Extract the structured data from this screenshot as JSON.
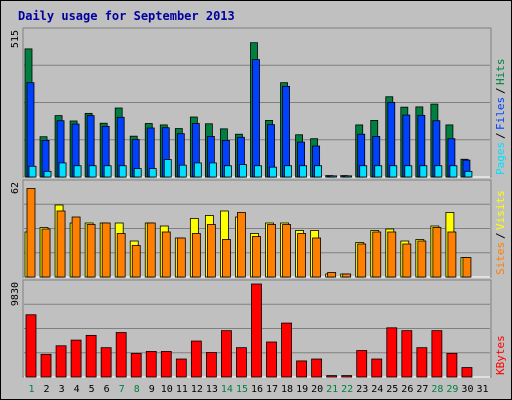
{
  "chart_data": {
    "type": "bar",
    "title": "Daily usage for September 2013",
    "categories": [
      "1",
      "2",
      "3",
      "4",
      "5",
      "6",
      "7",
      "8",
      "9",
      "10",
      "11",
      "12",
      "13",
      "14",
      "15",
      "16",
      "17",
      "18",
      "19",
      "20",
      "21",
      "22",
      "23",
      "24",
      "25",
      "26",
      "27",
      "28",
      "29",
      "30",
      "31"
    ],
    "weekend_days": [
      "1",
      "7",
      "8",
      "14",
      "15",
      "21",
      "22",
      "28",
      "29"
    ],
    "panels": [
      {
        "id": "hits",
        "ymax_label": "515",
        "ymax": 515,
        "right_labels": [
          "Pages",
          "Files",
          "Hits"
        ],
        "series": [
          {
            "name": "Hits",
            "color": "#008040",
            "values": [
              455,
              143,
              218,
              199,
              226,
              191,
              245,
              145,
              190,
              185,
              172,
              213,
              189,
              171,
              152,
              477,
              201,
              335,
              150,
              136,
              5,
              5,
              185,
              201,
              285,
              248,
              249,
              259,
              185,
              63
            ]
          },
          {
            "name": "Files",
            "color": "#0040ff",
            "values": [
              335,
              130,
              200,
              188,
              218,
              180,
              212,
              133,
              174,
              175,
              154,
              190,
              144,
              130,
              141,
              417,
              186,
              322,
              124,
              110,
              4,
              4,
              152,
              144,
              265,
              220,
              219,
              200,
              136,
              60
            ]
          },
          {
            "name": "Pages",
            "color": "#00e0ff",
            "values": [
              38,
              20,
              50,
              40,
              40,
              40,
              40,
              30,
              30,
              62,
              42,
              50,
              50,
              40,
              44,
              40,
              35,
              40,
              40,
              40,
              4,
              4,
              40,
              40,
              40,
              40,
              40,
              40,
              40,
              20
            ]
          }
        ]
      },
      {
        "id": "visits",
        "ymax_label": "62",
        "ymax": 62,
        "right_labels": [
          "Sites",
          "Visits"
        ],
        "series": [
          {
            "name": "Visits",
            "color": "#ffff00",
            "values": [
              30,
              33,
              48,
              36,
              36,
              36,
              36,
              24,
              36,
              34,
              26,
              39,
              41,
              44,
              40,
              29,
              36,
              36,
              31,
              31,
              2,
              2,
              23,
              31,
              32,
              24,
              25,
              34,
              43,
              13
            ]
          },
          {
            "name": "Sites",
            "color": "#ff8000",
            "values": [
              59,
              32,
              44,
              40,
              35,
              36,
              29,
              21,
              36,
              30,
              26,
              29,
              35,
              25,
              43,
              27,
              35,
              35,
              29,
              26,
              3,
              2,
              22,
              30,
              30,
              22,
              24,
              33,
              30,
              13
            ]
          }
        ]
      },
      {
        "id": "kbytes",
        "ymax_label": "9830",
        "ymax": 9830,
        "right_labels": [
          "KBytes"
        ],
        "series": [
          {
            "name": "KBytes",
            "color": "#ff0000",
            "values": [
              6580,
              2400,
              3300,
              3900,
              4400,
              3100,
              4700,
              2500,
              2700,
              2700,
              1900,
              3800,
              2600,
              4900,
              3100,
              9830,
              3700,
              5700,
              1700,
              1900,
              150,
              150,
              2800,
              1900,
              5200,
              4900,
              3100,
              4900,
              2500,
              1000
            ]
          }
        ]
      }
    ]
  }
}
